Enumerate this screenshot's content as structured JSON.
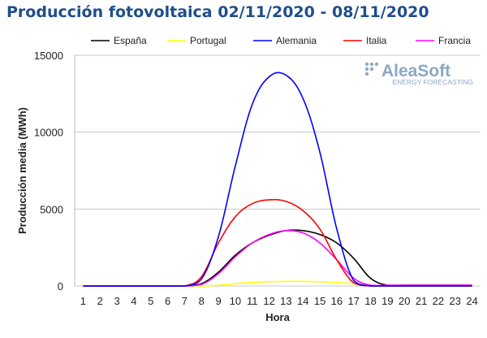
{
  "header": {
    "title": "Producción fotovoltaica 02/11/2020 - 08/11/2020"
  },
  "watermark": {
    "brand": "AleaSoft",
    "tagline": "ENERGY FORECASTING"
  },
  "chart_data": {
    "type": "line",
    "title": "Producción fotovoltaica 02/11/2020 - 08/11/2020",
    "xlabel": "Hora",
    "ylabel": "Producción media (MWh)",
    "x": [
      1,
      2,
      3,
      4,
      5,
      6,
      7,
      8,
      9,
      10,
      11,
      12,
      13,
      14,
      15,
      16,
      17,
      18,
      19,
      20,
      21,
      22,
      23,
      24
    ],
    "xlim": [
      1,
      24
    ],
    "ylim": [
      0,
      15000
    ],
    "yticks": [
      0,
      5000,
      10000,
      15000
    ],
    "grid": true,
    "legend": "top",
    "series": [
      {
        "name": "España",
        "color": "#000000",
        "values": [
          0,
          0,
          0,
          0,
          0,
          0,
          0,
          150,
          900,
          2000,
          2800,
          3300,
          3600,
          3600,
          3350,
          2800,
          1800,
          500,
          50,
          50,
          50,
          50,
          50,
          50
        ]
      },
      {
        "name": "Portugal",
        "color": "#ffff00",
        "values": [
          0,
          0,
          0,
          0,
          0,
          0,
          0,
          0,
          50,
          150,
          230,
          280,
          300,
          300,
          280,
          230,
          150,
          40,
          0,
          0,
          0,
          0,
          0,
          0
        ]
      },
      {
        "name": "Alemania",
        "color": "#0000ff",
        "values": [
          0,
          0,
          0,
          0,
          0,
          0,
          0,
          450,
          3200,
          7800,
          11800,
          13600,
          13700,
          12200,
          8700,
          3700,
          350,
          0,
          0,
          0,
          0,
          0,
          0,
          0
        ]
      },
      {
        "name": "Italia",
        "color": "#ff0000",
        "values": [
          0,
          0,
          0,
          0,
          0,
          0,
          0,
          600,
          2800,
          4500,
          5350,
          5600,
          5500,
          4900,
          3700,
          1700,
          200,
          0,
          0,
          0,
          0,
          0,
          0,
          0
        ]
      },
      {
        "name": "Francia",
        "color": "#ff00ff",
        "values": [
          0,
          0,
          0,
          0,
          0,
          0,
          0,
          100,
          800,
          1900,
          2800,
          3350,
          3600,
          3450,
          2800,
          1700,
          500,
          50,
          50,
          50,
          50,
          50,
          50,
          50
        ]
      }
    ]
  }
}
